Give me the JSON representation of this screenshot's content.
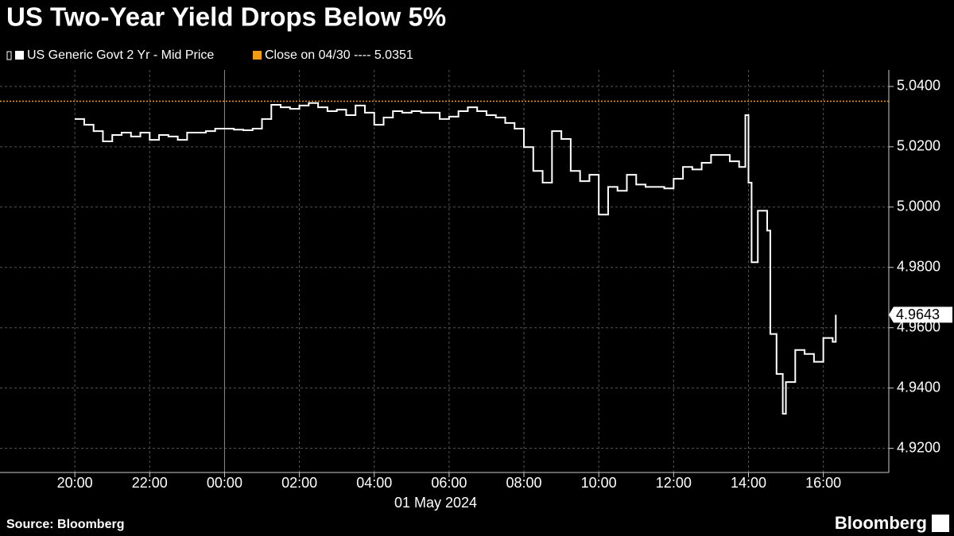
{
  "chart_data": {
    "type": "line",
    "title": "US Two-Year Yield Drops Below 5%",
    "source": "Source: Bloomberg",
    "brand": "Bloomberg",
    "date_label": "01 May 2024",
    "x": [
      "20:00",
      "20:15",
      "20:30",
      "20:45",
      "21:00",
      "21:15",
      "21:30",
      "21:45",
      "22:00",
      "22:15",
      "22:30",
      "22:45",
      "23:00",
      "23:15",
      "23:30",
      "23:45",
      "00:00",
      "00:15",
      "00:30",
      "00:45",
      "01:00",
      "01:15",
      "01:30",
      "01:45",
      "02:00",
      "02:15",
      "02:30",
      "02:45",
      "03:00",
      "03:15",
      "03:30",
      "03:45",
      "04:00",
      "04:15",
      "04:30",
      "04:45",
      "05:00",
      "05:15",
      "05:30",
      "05:45",
      "06:00",
      "06:15",
      "06:30",
      "06:45",
      "07:00",
      "07:15",
      "07:30",
      "07:45",
      "08:00",
      "08:15",
      "08:30",
      "08:45",
      "09:00",
      "09:15",
      "09:30",
      "09:45",
      "10:00",
      "10:15",
      "10:30",
      "10:45",
      "11:00",
      "11:15",
      "11:30",
      "11:45",
      "12:00",
      "12:15",
      "12:30",
      "12:45",
      "13:00",
      "13:15",
      "13:30",
      "13:45",
      "13:55",
      "14:00",
      "14:05",
      "14:15",
      "14:30",
      "14:35",
      "14:45",
      "14:55",
      "15:00",
      "15:15",
      "15:30",
      "15:45",
      "16:00",
      "16:15",
      "16:20"
    ],
    "series": [
      {
        "name": "US Generic Govt 2 Yr - Mid Price",
        "color": "#ffffff",
        "values": [
          5.0292,
          5.0273,
          5.0252,
          5.0218,
          5.0239,
          5.0247,
          5.0234,
          5.0247,
          5.0223,
          5.0239,
          5.0234,
          5.0223,
          5.0247,
          5.0247,
          5.0252,
          5.026,
          5.026,
          5.0257,
          5.0255,
          5.026,
          5.0292,
          5.0339,
          5.0331,
          5.0326,
          5.0337,
          5.0345,
          5.0331,
          5.0318,
          5.0323,
          5.0305,
          5.0337,
          5.0313,
          5.0273,
          5.0297,
          5.0318,
          5.0313,
          5.0318,
          5.0313,
          5.0313,
          5.0292,
          5.03,
          5.0318,
          5.0331,
          5.0318,
          5.0305,
          5.0297,
          5.0279,
          5.026,
          5.0199,
          5.012,
          5.0081,
          5.0252,
          5.0226,
          5.012,
          5.0086,
          5.0107,
          4.9975,
          5.0067,
          5.0054,
          5.0107,
          5.0075,
          5.0067,
          5.0067,
          5.0062,
          5.0094,
          5.0133,
          5.0125,
          5.0147,
          5.0173,
          5.0173,
          5.0152,
          5.0133,
          5.0305,
          5.0081,
          4.9817,
          4.9988,
          4.9922,
          4.9579,
          4.9447,
          4.9315,
          4.942,
          4.9526,
          4.9513,
          4.9487,
          4.9566,
          4.9553,
          4.9643
        ]
      }
    ],
    "reference_line": {
      "name": "Close on 04/30 ---- 5.0351",
      "color": "#f39c12",
      "value": 5.0351
    },
    "last_value": 4.9643,
    "xlim": [
      "18:00",
      "17:45"
    ],
    "xticks": [
      "20:00",
      "22:00",
      "00:00",
      "02:00",
      "04:00",
      "06:00",
      "08:00",
      "10:00",
      "12:00",
      "14:00",
      "16:00"
    ],
    "day_break": "00:00",
    "ylim": [
      4.912,
      5.0455
    ],
    "yticks": [
      {
        "value": 4.92,
        "label": "4.9200"
      },
      {
        "value": 4.94,
        "label": "4.9400"
      },
      {
        "value": 4.96,
        "label": "4.9600"
      },
      {
        "value": 4.98,
        "label": "4.9800"
      },
      {
        "value": 5.0,
        "label": "5.0000"
      },
      {
        "value": 5.02,
        "label": "5.0200"
      },
      {
        "value": 5.04,
        "label": "5.0400"
      }
    ],
    "grid": true,
    "step": true
  }
}
